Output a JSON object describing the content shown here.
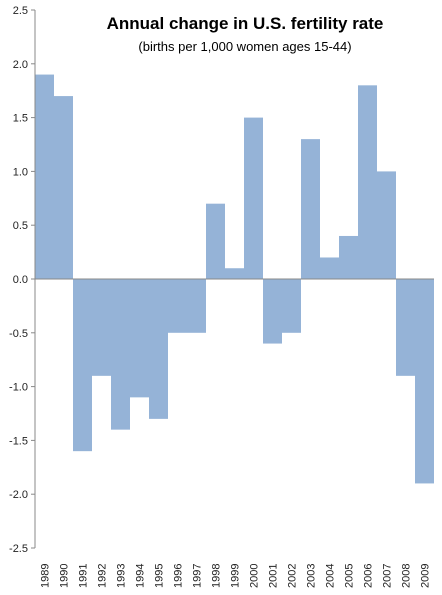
{
  "chart_data": {
    "type": "bar",
    "title": "Annual change in U.S. fertility rate",
    "subtitle": "(births per 1,000 women ages 15-44)",
    "xlabel": "",
    "ylabel": "",
    "ylim": [
      -2.5,
      2.5
    ],
    "yticks": [
      "2.5",
      "2.0",
      "1.5",
      "1.0",
      "0.5",
      "0.0",
      "-0.5",
      "-1.0",
      "-1.5",
      "-2.0",
      "-2.5"
    ],
    "ytick_values": [
      2.5,
      2.0,
      1.5,
      1.0,
      0.5,
      0.0,
      -0.5,
      -1.0,
      -1.5,
      -2.0,
      -2.5
    ],
    "grid": false,
    "categories": [
      "1989",
      "1990",
      "1991",
      "1992",
      "1993",
      "1994",
      "1995",
      "1996",
      "1997",
      "1998",
      "1999",
      "2000",
      "2001",
      "2002",
      "2003",
      "2004",
      "2005",
      "2006",
      "2007",
      "2008",
      "2009"
    ],
    "values": [
      1.9,
      1.7,
      -1.6,
      -0.9,
      -1.4,
      -1.1,
      -1.3,
      -0.5,
      -0.5,
      0.7,
      0.1,
      1.5,
      -0.6,
      -0.5,
      1.3,
      0.2,
      0.4,
      1.8,
      1.0,
      -0.9,
      -1.9
    ],
    "bar_color": "#95b3d7"
  }
}
